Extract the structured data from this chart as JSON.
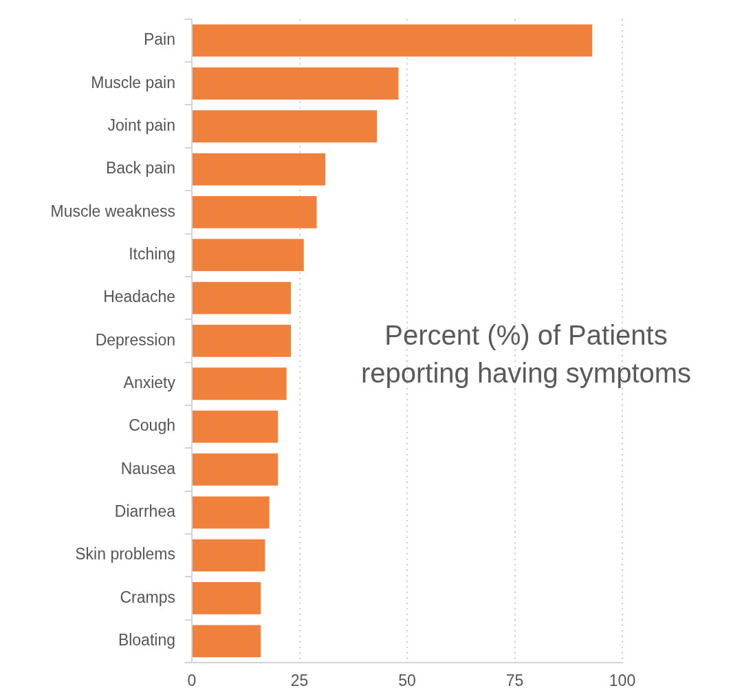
{
  "chart_data": {
    "type": "bar",
    "orientation": "horizontal",
    "xlabel": "Percent (%) of Patients reporting having symptoms",
    "categories": [
      "Pain",
      "Muscle pain",
      "Joint pain",
      "Back pain",
      "Muscle weakness",
      "Itching",
      "Headache",
      "Depression",
      "Anxiety",
      "Cough",
      "Nausea",
      "Diarrhea",
      "Skin problems",
      "Cramps",
      "Bloating"
    ],
    "values": [
      93,
      48,
      43,
      31,
      29,
      26,
      23,
      23,
      22,
      20,
      20,
      18,
      17,
      16,
      16
    ],
    "color": "#f0813c",
    "xlim": [
      0,
      100
    ],
    "xticks": [
      0,
      25,
      50,
      75,
      100
    ],
    "grid": "x",
    "legend": false
  }
}
